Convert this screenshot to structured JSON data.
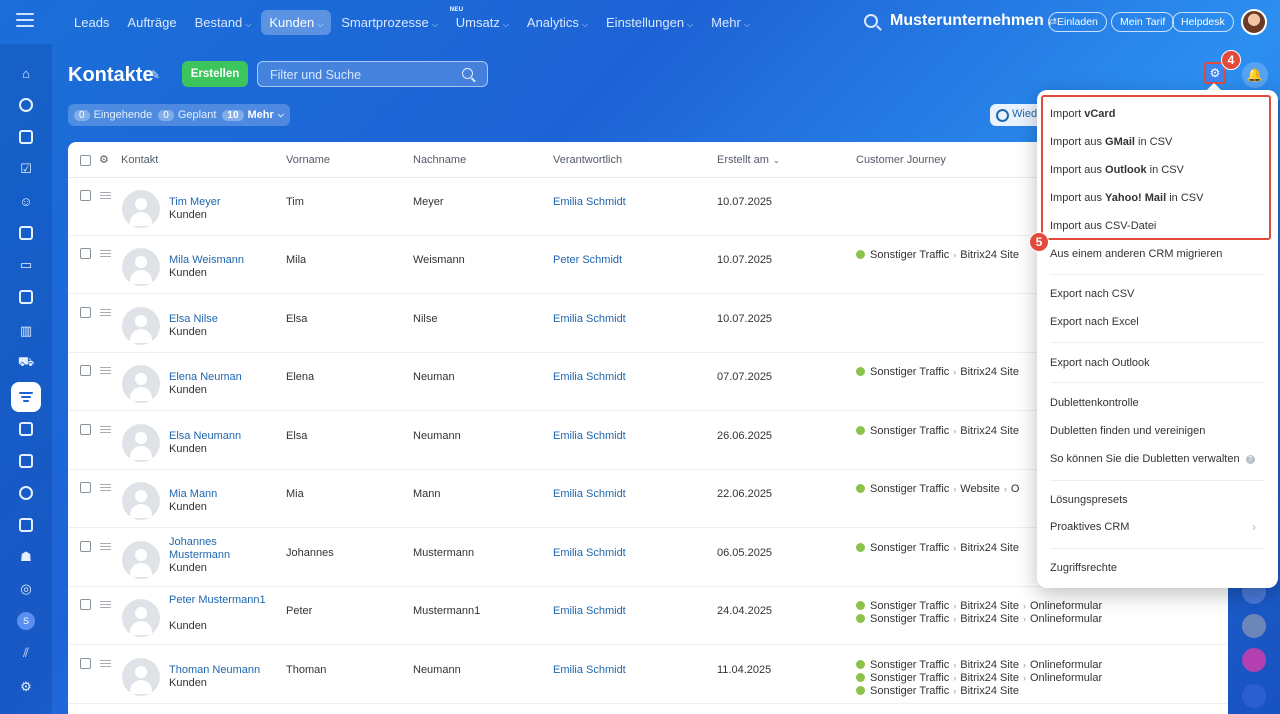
{
  "topnav": {
    "items": [
      {
        "label": "Leads",
        "chevron": false,
        "active": false
      },
      {
        "label": "Aufträge",
        "chevron": false,
        "active": false
      },
      {
        "label": "Bestand",
        "chevron": true,
        "active": false
      },
      {
        "label": "Kunden",
        "chevron": true,
        "active": true
      },
      {
        "label": "Smartprozesse",
        "chevron": true,
        "active": false
      },
      {
        "label": "Umsatz",
        "chevron": true,
        "active": false,
        "tag": "NEU"
      },
      {
        "label": "Analytics",
        "chevron": true,
        "active": false
      },
      {
        "label": "Einstellungen",
        "chevron": true,
        "active": false
      },
      {
        "label": "Mehr",
        "chevron": true,
        "active": false
      }
    ],
    "company": "Musterunternehmen",
    "buttons": {
      "invite": "Einladen",
      "plan": "Mein Tarif",
      "help": "Helpdesk"
    }
  },
  "sidebar": {
    "user_initial": "S"
  },
  "page": {
    "title": "Kontakte",
    "create_label": "Erstellen",
    "search_placeholder": "Filter und Suche",
    "step_badges": {
      "gear": "4",
      "menu": "5"
    }
  },
  "counters": [
    {
      "num": "0",
      "label": "Eingehende"
    },
    {
      "num": "0",
      "label": "Geplant"
    },
    {
      "num": "10",
      "label": "Mehr"
    }
  ],
  "repeat_label": "Wied",
  "table": {
    "columns": [
      "Kontakt",
      "Vorname",
      "Nachname",
      "Verantwortlich",
      "Erstellt am",
      "Customer Journey"
    ],
    "rows": [
      {
        "name": "Tim Meyer",
        "type": "Kunden",
        "first": "Tim",
        "last": "Meyer",
        "owner": "Emilia Schmidt",
        "created": "10.07.2025",
        "journey": []
      },
      {
        "name": "Mila Weismann",
        "type": "Kunden",
        "first": "Mila",
        "last": "Weismann",
        "owner": "Peter Schmidt",
        "created": "10.07.2025",
        "journey": [
          "Sonstiger Traffic > Bitrix24 Site"
        ]
      },
      {
        "name": "Elsa Nilse",
        "type": "Kunden",
        "first": "Elsa",
        "last": "Nilse",
        "owner": "Emilia Schmidt",
        "created": "10.07.2025",
        "journey": []
      },
      {
        "name": "Elena Neuman",
        "type": "Kunden",
        "first": "Elena",
        "last": "Neuman",
        "owner": "Emilia Schmidt",
        "created": "07.07.2025",
        "journey": [
          "Sonstiger Traffic > Bitrix24 Site"
        ]
      },
      {
        "name": "Elsa Neumann",
        "type": "Kunden",
        "first": "Elsa",
        "last": "Neumann",
        "owner": "Emilia Schmidt",
        "created": "26.06.2025",
        "journey": [
          "Sonstiger Traffic > Bitrix24 Site"
        ]
      },
      {
        "name": "Mia Mann",
        "type": "Kunden",
        "first": "Mia",
        "last": "Mann",
        "owner": "Emilia Schmidt",
        "created": "22.06.2025",
        "journey": [
          "Sonstiger Traffic > Website > O"
        ]
      },
      {
        "name": "Johannes Mustermann",
        "type": "Kunden",
        "first": "Johannes",
        "last": "Mustermann",
        "owner": "Emilia Schmidt",
        "created": "06.05.2025",
        "journey": [
          "Sonstiger Traffic > Bitrix24 Site"
        ]
      },
      {
        "name": "Peter Mustermann1",
        "type": "Kunden",
        "first": "Peter",
        "last": "Mustermann1",
        "owner": "Emilia Schmidt",
        "created": "24.04.2025",
        "journey": [
          "Sonstiger Traffic > Bitrix24 Site > Onlineformular",
          "Sonstiger Traffic > Bitrix24 Site > Onlineformular"
        ]
      },
      {
        "name": "Thoman Neumann",
        "type": "Kunden",
        "first": "Thoman",
        "last": "Neumann",
        "owner": "Emilia Schmidt",
        "created": "11.04.2025",
        "journey": [
          "Sonstiger Traffic > Bitrix24 Site > Onlineformular",
          "Sonstiger Traffic > Bitrix24 Site > Onlineformular",
          "Sonstiger Traffic > Bitrix24 Site"
        ]
      }
    ]
  },
  "menu": {
    "items": [
      {
        "pre": "Import ",
        "bold": "vCard",
        "post": ""
      },
      {
        "pre": "Import aus ",
        "bold": "GMail",
        "post": " in CSV"
      },
      {
        "pre": "Import aus ",
        "bold": "Outlook",
        "post": " in CSV"
      },
      {
        "pre": "Import aus ",
        "bold": "Yahoo! Mail",
        "post": " in CSV"
      },
      {
        "pre": "Import aus CSV-Datei",
        "bold": "",
        "post": ""
      },
      {
        "pre": "Aus einem anderen CRM migrieren",
        "bold": "",
        "post": ""
      },
      {
        "pre": "Export nach CSV",
        "bold": "",
        "post": ""
      },
      {
        "pre": "Export nach Excel",
        "bold": "",
        "post": ""
      },
      {
        "pre": "Export nach Outlook",
        "bold": "",
        "post": ""
      },
      {
        "pre": "Dublettenkontrolle",
        "bold": "",
        "post": ""
      },
      {
        "pre": "Dubletten finden und vereinigen",
        "bold": "",
        "post": ""
      },
      {
        "pre": "So können Sie die Dubletten verwalten",
        "bold": "",
        "post": ""
      },
      {
        "pre": "Lösungspresets",
        "bold": "",
        "post": ""
      },
      {
        "pre": "Proaktives CRM",
        "bold": "",
        "post": ""
      },
      {
        "pre": "Zugriffsrechte",
        "bold": "",
        "post": ""
      }
    ]
  },
  "colors": {
    "accent": "#1e63d6",
    "create": "#3bc55c",
    "highlight": "#e24a3b",
    "link": "#2067b0"
  }
}
